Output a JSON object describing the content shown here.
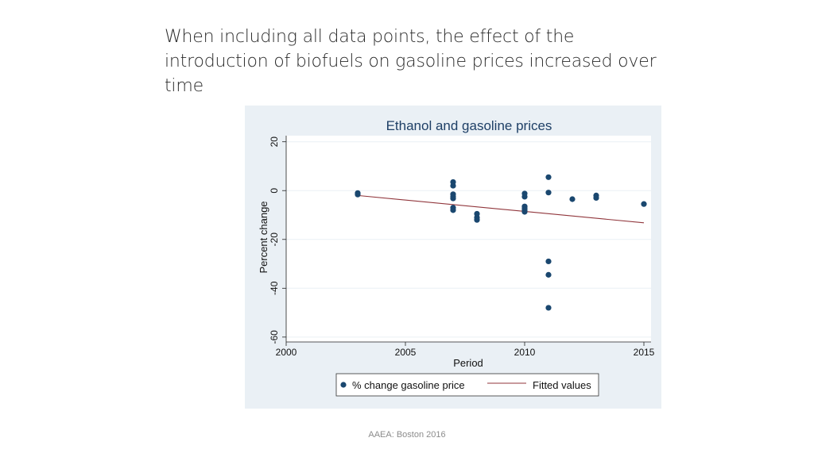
{
  "slide": {
    "title": "When including all data points, the effect of the introduction of biofuels on gasoline prices increased over time",
    "footer": "AAEA: Boston 2016"
  },
  "colors": {
    "panel_bg": "#eaf0f5",
    "plot_bg": "#ffffff",
    "marker": "#1a476f",
    "fit_line": "#90353b",
    "title_text": "#1e3f66",
    "grid": "#eaf0f5"
  },
  "chart_data": {
    "type": "scatter",
    "title": "Ethanol and gasoline prices",
    "xlabel": "Period",
    "ylabel": "Percent change",
    "xlim": [
      2000,
      2015.3
    ],
    "ylim": [
      -62,
      22.5
    ],
    "xticks": [
      2000,
      2005,
      2010,
      2015
    ],
    "yticks": [
      20,
      0,
      -20,
      -40,
      -60
    ],
    "grid": true,
    "legend_position": "bottom",
    "series": [
      {
        "name": "% change gasoline price",
        "kind": "scatter",
        "points": [
          [
            2003,
            -1.0
          ],
          [
            2003,
            -1.6
          ],
          [
            2007,
            3.5
          ],
          [
            2007,
            2.0
          ],
          [
            2007,
            -1.5
          ],
          [
            2007,
            -2.5
          ],
          [
            2007,
            -3.2
          ],
          [
            2007,
            -7.0
          ],
          [
            2007,
            -8.0
          ],
          [
            2008,
            -9.5
          ],
          [
            2008,
            -11.0
          ],
          [
            2008,
            -12.0
          ],
          [
            2010,
            -1.2
          ],
          [
            2010,
            -2.5
          ],
          [
            2010,
            -6.5
          ],
          [
            2010,
            -7.2
          ],
          [
            2010,
            -8.0
          ],
          [
            2010,
            -8.7
          ],
          [
            2011,
            5.5
          ],
          [
            2011,
            -0.8
          ],
          [
            2011,
            -29.0
          ],
          [
            2011,
            -34.5
          ],
          [
            2011,
            -48.0
          ],
          [
            2012,
            -3.5
          ],
          [
            2013,
            -2.0
          ],
          [
            2013,
            -3.0
          ],
          [
            2015,
            -5.5
          ]
        ]
      },
      {
        "name": "Fitted values",
        "kind": "line",
        "points": [
          [
            2003,
            -2.0
          ],
          [
            2015,
            -13.2
          ]
        ]
      }
    ]
  }
}
